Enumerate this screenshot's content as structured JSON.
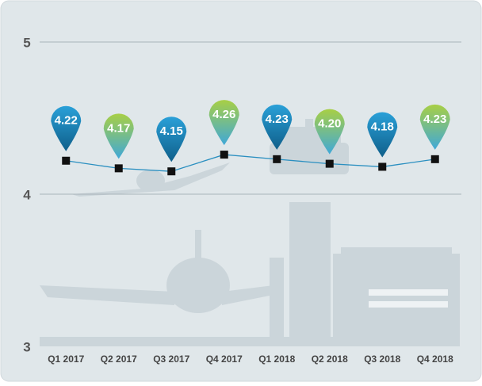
{
  "chart_data": {
    "type": "line",
    "categories": [
      "Q1 2017",
      "Q2 2017",
      "Q3 2017",
      "Q4 2017",
      "Q1 2018",
      "Q2 2018",
      "Q3 2018",
      "Q4 2018"
    ],
    "values": [
      4.22,
      4.17,
      4.15,
      4.26,
      4.23,
      4.2,
      4.18,
      4.23
    ],
    "value_labels": [
      "4.22",
      "4.17",
      "4.15",
      "4.26",
      "4.23",
      "4.20",
      "4.18",
      "4.23"
    ],
    "color": "#2a8fc0",
    "pin_colors": [
      "#1b82b8",
      "#8dbf3a"
    ],
    "ylim": [
      3,
      5
    ],
    "yticks": [
      3,
      4,
      5
    ],
    "grid": true
  }
}
